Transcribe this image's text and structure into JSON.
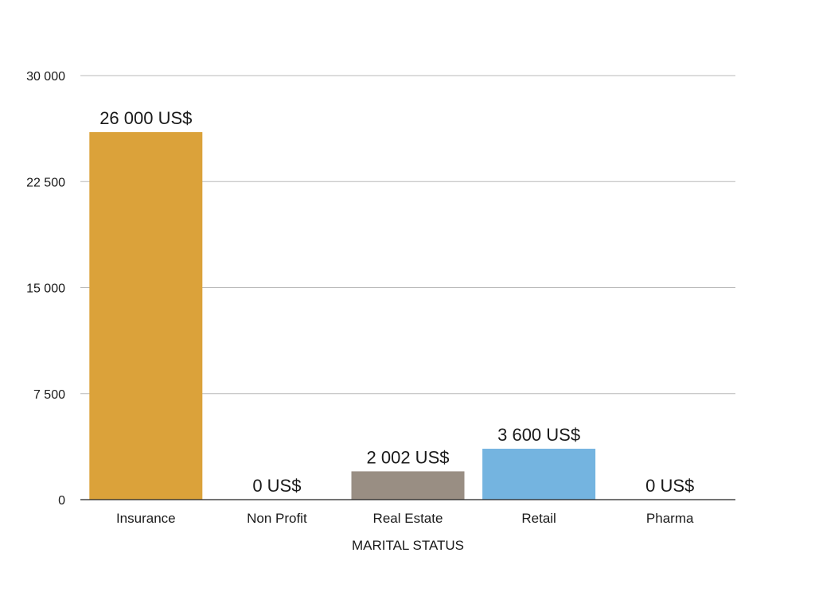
{
  "chart_data": {
    "type": "bar",
    "title": "",
    "xlabel": "MARITAL STATUS",
    "ylabel": "",
    "categories": [
      "Insurance",
      "Non Profit",
      "Real Estate",
      "Retail",
      "Pharma"
    ],
    "values": [
      26000,
      0,
      2002,
      3600,
      0
    ],
    "data_labels": [
      "26 000 US$",
      "0 US$",
      "2 002 US$",
      "3 600 US$",
      "0 US$"
    ],
    "colors": [
      "#DBA23A",
      "#DBA23A",
      "#998E83",
      "#74B4E0",
      "#DBA23A"
    ],
    "ylim": [
      0,
      30000
    ],
    "yticks": [
      0,
      7500,
      15000,
      22500,
      30000
    ],
    "ytick_labels": [
      "0",
      "7 500",
      "15 000",
      "22 500",
      "30 000"
    ],
    "grid": true,
    "legend": "none"
  }
}
